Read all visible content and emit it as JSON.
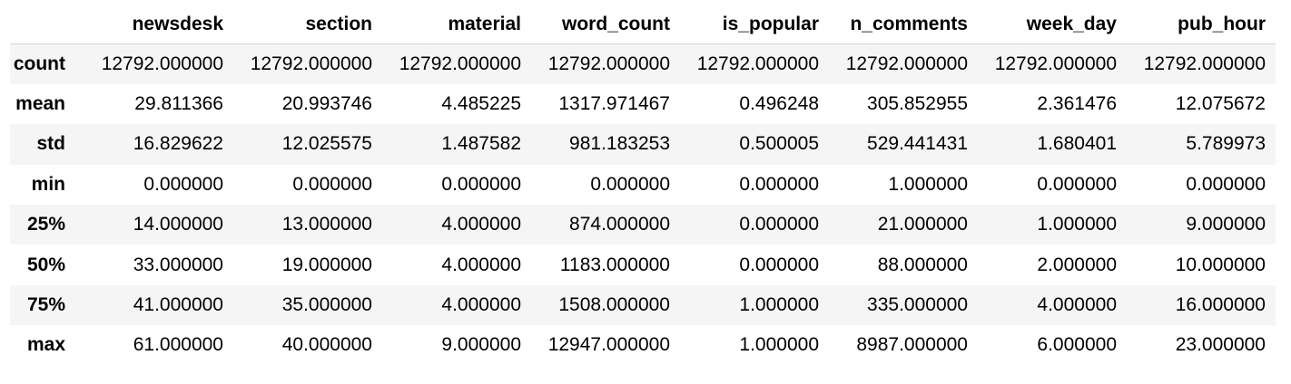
{
  "columns": [
    "",
    "newsdesk",
    "section",
    "material",
    "word_count",
    "is_popular",
    "n_comments",
    "week_day",
    "pub_hour"
  ],
  "rows": [
    {
      "label": "count",
      "values": [
        "12792.000000",
        "12792.000000",
        "12792.000000",
        "12792.000000",
        "12792.000000",
        "12792.000000",
        "12792.000000",
        "12792.000000"
      ]
    },
    {
      "label": "mean",
      "values": [
        "29.811366",
        "20.993746",
        "4.485225",
        "1317.971467",
        "0.496248",
        "305.852955",
        "2.361476",
        "12.075672"
      ]
    },
    {
      "label": "std",
      "values": [
        "16.829622",
        "12.025575",
        "1.487582",
        "981.183253",
        "0.500005",
        "529.441431",
        "1.680401",
        "5.789973"
      ]
    },
    {
      "label": "min",
      "values": [
        "0.000000",
        "0.000000",
        "0.000000",
        "0.000000",
        "0.000000",
        "1.000000",
        "0.000000",
        "0.000000"
      ]
    },
    {
      "label": "25%",
      "values": [
        "14.000000",
        "13.000000",
        "4.000000",
        "874.000000",
        "0.000000",
        "21.000000",
        "1.000000",
        "9.000000"
      ]
    },
    {
      "label": "50%",
      "values": [
        "33.000000",
        "19.000000",
        "4.000000",
        "1183.000000",
        "0.000000",
        "88.000000",
        "2.000000",
        "10.000000"
      ]
    },
    {
      "label": "75%",
      "values": [
        "41.000000",
        "35.000000",
        "4.000000",
        "1508.000000",
        "1.000000",
        "335.000000",
        "4.000000",
        "16.000000"
      ]
    },
    {
      "label": "max",
      "values": [
        "61.000000",
        "40.000000",
        "9.000000",
        "12947.000000",
        "1.000000",
        "8987.000000",
        "6.000000",
        "23.000000"
      ]
    }
  ]
}
